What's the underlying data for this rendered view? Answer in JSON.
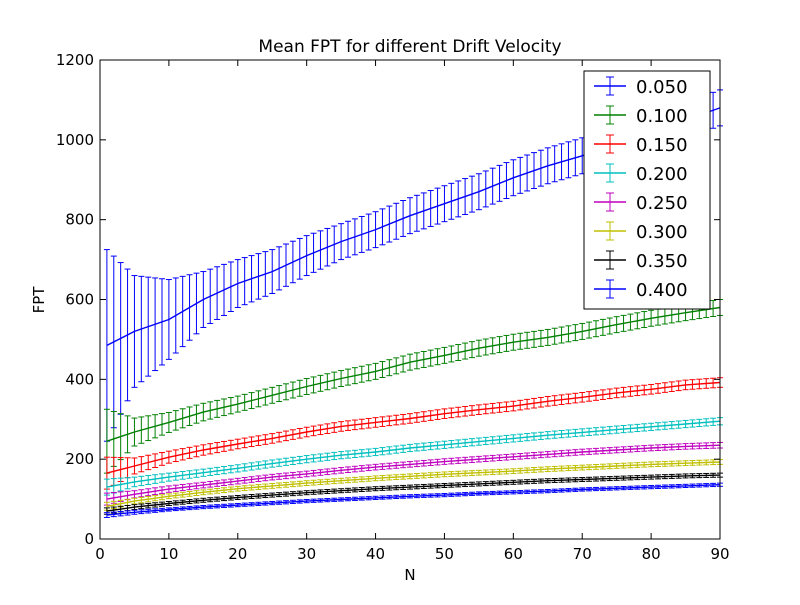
{
  "chart_data": {
    "type": "line",
    "title": "Mean FPT for different Drift Velocity",
    "xlabel": "N",
    "ylabel": "FPT",
    "xlim": [
      0,
      90
    ],
    "ylim": [
      0,
      1200
    ],
    "xticks": [
      0,
      10,
      20,
      30,
      40,
      50,
      60,
      70,
      80,
      90
    ],
    "yticks": [
      0,
      200,
      400,
      600,
      800,
      1000,
      1200
    ],
    "grid": false,
    "legend_position": "top-right",
    "error_bars": true,
    "series": [
      {
        "name": "0.050",
        "color": "#0000ff",
        "x": [
          1,
          5,
          10,
          15,
          20,
          25,
          30,
          35,
          40,
          45,
          50,
          55,
          60,
          65,
          70,
          75,
          80,
          85,
          90
        ],
        "y": [
          485,
          520,
          550,
          600,
          640,
          670,
          710,
          745,
          775,
          810,
          840,
          870,
          905,
          935,
          960,
          990,
          1020,
          1050,
          1080
        ],
        "err": [
          240,
          140,
          100,
          70,
          60,
          55,
          50,
          45,
          45,
          45,
          45,
          45,
          45,
          45,
          45,
          45,
          45,
          45,
          45
        ]
      },
      {
        "name": "0.100",
        "color": "#008000",
        "x": [
          1,
          5,
          10,
          15,
          20,
          25,
          30,
          35,
          40,
          45,
          50,
          55,
          60,
          65,
          70,
          75,
          80,
          85,
          90
        ],
        "y": [
          245,
          268,
          292,
          318,
          338,
          360,
          382,
          402,
          420,
          443,
          460,
          478,
          493,
          505,
          520,
          537,
          553,
          567,
          580
        ],
        "err": [
          80,
          35,
          25,
          22,
          20,
          20,
          20,
          20,
          20,
          20,
          20,
          20,
          20,
          20,
          20,
          20,
          20,
          20,
          20
        ]
      },
      {
        "name": "0.150",
        "color": "#ff0000",
        "x": [
          1,
          5,
          10,
          15,
          20,
          25,
          30,
          35,
          40,
          45,
          50,
          55,
          60,
          65,
          70,
          75,
          80,
          85,
          90
        ],
        "y": [
          165,
          183,
          205,
          223,
          238,
          252,
          268,
          282,
          292,
          302,
          314,
          324,
          333,
          345,
          355,
          366,
          375,
          386,
          392
        ],
        "err": [
          40,
          20,
          15,
          13,
          12,
          12,
          12,
          12,
          12,
          12,
          12,
          12,
          12,
          12,
          12,
          12,
          12,
          12,
          12
        ]
      },
      {
        "name": "0.200",
        "color": "#00bfbf",
        "x": [
          1,
          5,
          10,
          15,
          20,
          25,
          30,
          35,
          40,
          45,
          50,
          55,
          60,
          65,
          70,
          75,
          80,
          85,
          90
        ],
        "y": [
          130,
          143,
          155,
          166,
          177,
          189,
          200,
          210,
          218,
          228,
          236,
          244,
          252,
          260,
          267,
          274,
          281,
          288,
          295
        ],
        "err": [
          20,
          12,
          10,
          9,
          9,
          9,
          9,
          9,
          9,
          9,
          9,
          9,
          9,
          9,
          9,
          9,
          9,
          9,
          9
        ]
      },
      {
        "name": "0.250",
        "color": "#bf00bf",
        "x": [
          1,
          5,
          10,
          15,
          20,
          25,
          30,
          35,
          40,
          45,
          50,
          55,
          60,
          65,
          70,
          75,
          80,
          85,
          90
        ],
        "y": [
          100,
          112,
          125,
          135,
          145,
          155,
          163,
          172,
          180,
          187,
          194,
          200,
          206,
          212,
          218,
          223,
          228,
          232,
          235
        ],
        "err": [
          15,
          9,
          8,
          7,
          7,
          7,
          7,
          7,
          7,
          7,
          7,
          7,
          7,
          7,
          7,
          7,
          7,
          7,
          7
        ]
      },
      {
        "name": "0.300",
        "color": "#bfbf00",
        "x": [
          1,
          5,
          10,
          15,
          20,
          25,
          30,
          35,
          40,
          45,
          50,
          55,
          60,
          65,
          70,
          75,
          80,
          85,
          90
        ],
        "y": [
          82,
          95,
          107,
          117,
          126,
          133,
          140,
          146,
          152,
          157,
          162,
          166,
          170,
          175,
          179,
          183,
          187,
          190,
          193
        ],
        "err": [
          10,
          7,
          6,
          6,
          6,
          6,
          6,
          6,
          6,
          6,
          6,
          6,
          6,
          6,
          6,
          6,
          6,
          6,
          6
        ]
      },
      {
        "name": "0.350",
        "color": "#000000",
        "x": [
          1,
          5,
          10,
          15,
          20,
          25,
          30,
          35,
          40,
          45,
          50,
          55,
          60,
          65,
          70,
          75,
          80,
          85,
          90
        ],
        "y": [
          70,
          80,
          89,
          97,
          104,
          110,
          116,
          121,
          126,
          130,
          134,
          138,
          142,
          146,
          149,
          152,
          155,
          158,
          160
        ],
        "err": [
          8,
          6,
          5,
          5,
          5,
          5,
          5,
          5,
          5,
          5,
          5,
          5,
          5,
          5,
          5,
          5,
          5,
          5,
          5
        ]
      },
      {
        "name": "0.400",
        "color": "#0000ff",
        "x": [
          1,
          5,
          10,
          15,
          20,
          25,
          30,
          35,
          40,
          45,
          50,
          55,
          60,
          65,
          70,
          75,
          80,
          85,
          90
        ],
        "y": [
          60,
          67,
          74,
          80,
          85,
          90,
          95,
          99,
          103,
          107,
          110,
          114,
          117,
          120,
          124,
          127,
          130,
          133,
          136
        ],
        "err": [
          6,
          5,
          4,
          4,
          4,
          4,
          4,
          4,
          4,
          4,
          4,
          4,
          4,
          4,
          4,
          4,
          4,
          4,
          4
        ]
      }
    ]
  }
}
